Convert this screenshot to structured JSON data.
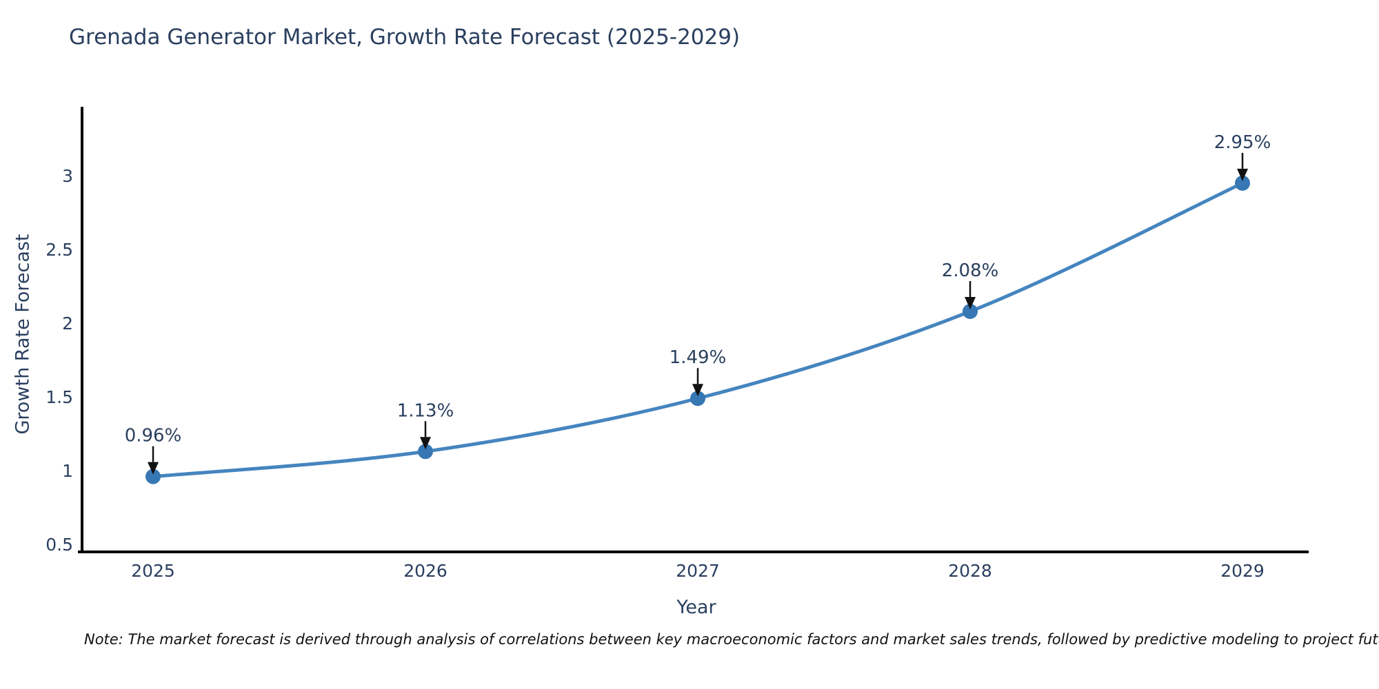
{
  "chart_data": {
    "type": "line",
    "title": "Grenada Generator Market, Growth Rate Forecast (2025-2029)",
    "xlabel": "Year",
    "ylabel": "Growth Rate Forecast",
    "categories": [
      2025,
      2026,
      2027,
      2028,
      2029
    ],
    "series": [
      {
        "name": "Growth Rate Forecast",
        "values": [
          0.96,
          1.13,
          1.49,
          2.08,
          2.95
        ],
        "point_labels": [
          "0.96%",
          "1.13%",
          "1.49%",
          "2.08%",
          "2.95%"
        ]
      }
    ],
    "xtick_labels": [
      "2025",
      "2026",
      "2027",
      "2028",
      "2029"
    ],
    "yticks": [
      0.5,
      1,
      1.5,
      2,
      2.5,
      3
    ],
    "ytick_labels": [
      "0.5",
      "1",
      "1.5",
      "2",
      "2.5",
      "3"
    ],
    "xlim": [
      2024.724,
      2029.243
    ],
    "ylim": [
      0.449,
      3.468
    ],
    "grid": false,
    "legend": false,
    "line_shape": "spline",
    "marker": "circle",
    "annotation_style": "down-arrow-to-point",
    "colors": {
      "line": "#4585bf",
      "marker": "#3777b3",
      "axis": "#000000",
      "text": "#2a3f5f",
      "note": "#111111",
      "arrow": "#111111",
      "background": "#ffffff"
    },
    "note": "Note: The market forecast is derived through analysis of correlations between key macroeconomic factors and market sales trends, followed by predictive modeling to project future sales"
  }
}
